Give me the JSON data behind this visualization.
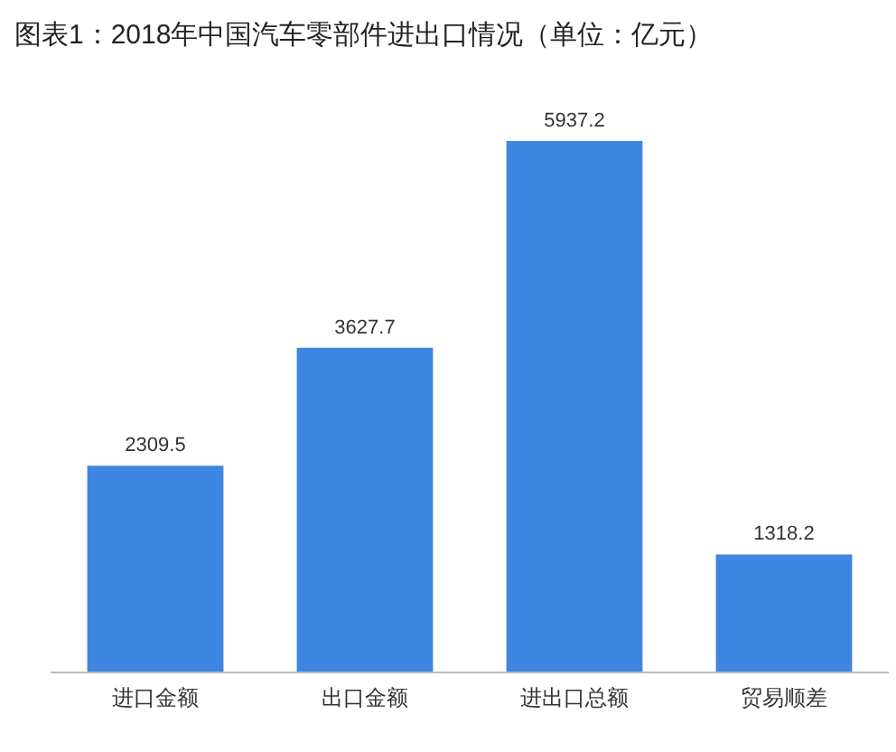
{
  "chart_data": {
    "type": "bar",
    "title": "图表1：2018年中国汽车零部件进出口情况（单位：亿元）",
    "categories": [
      "进口金额",
      "出口金额",
      "进出口总额",
      "贸易顺差"
    ],
    "values": [
      2309.5,
      3627.7,
      5937.2,
      1318.2
    ],
    "color": "#3f86e0",
    "data_labels": true
  }
}
